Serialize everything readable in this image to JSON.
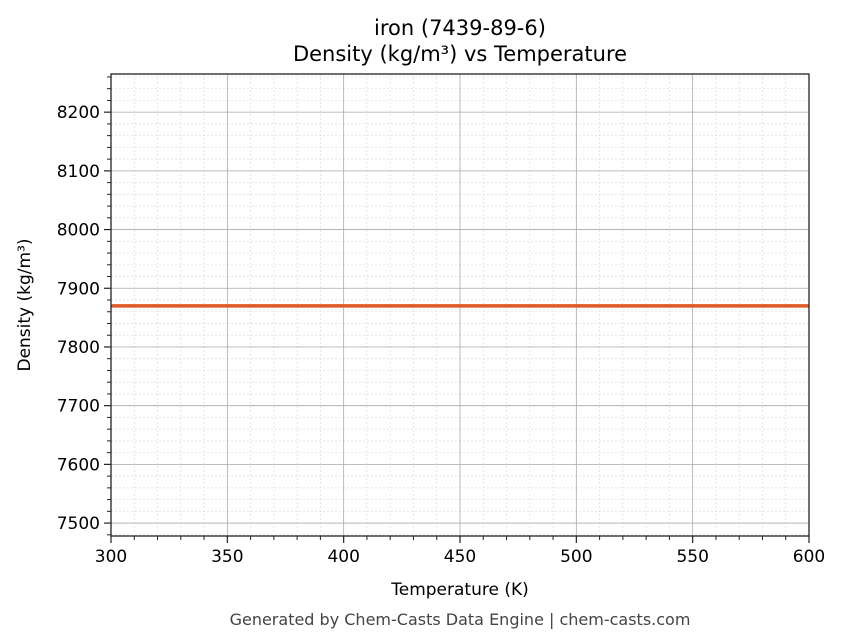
{
  "chart_data": {
    "type": "line",
    "title_line1": "iron (7439-89-6)",
    "title_line2": "Density (kg/m³) vs Temperature",
    "xlabel": "Temperature (K)",
    "ylabel": "Density (kg/m³)",
    "xlim": [
      300,
      600
    ],
    "ylim": [
      7478,
      8265
    ],
    "xticks": [
      300,
      350,
      400,
      450,
      500,
      550,
      600
    ],
    "yticks": [
      7500,
      7600,
      7700,
      7800,
      7900,
      8000,
      8100,
      8200
    ],
    "x_minor_step": 10,
    "y_minor_step": 20,
    "grid": true,
    "series": [
      {
        "name": "Density",
        "color": "#e05a28",
        "x": [
          300,
          600
        ],
        "y": [
          7870,
          7870
        ]
      }
    ],
    "footer": "Generated by Chem-Casts Data Engine | chem-casts.com"
  }
}
